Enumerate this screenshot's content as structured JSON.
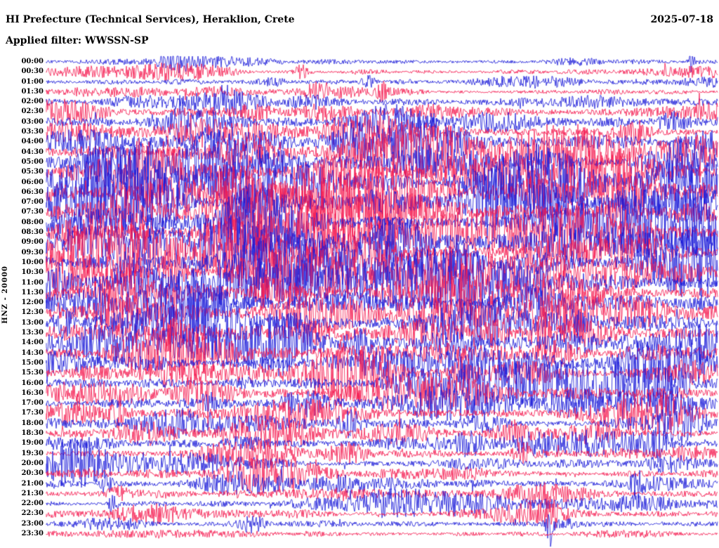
{
  "header": {
    "station_title": "HI Prefecture (Technical Services), Heraklion, Crete",
    "date": "2025-07-18",
    "filter_label": "Applied filter: WWSSN-SP"
  },
  "axis": {
    "channel_label": "HNZ - 20000"
  },
  "colors": {
    "trace_blue": "#1515d8",
    "trace_red": "#f5144b",
    "background": "#ffffff",
    "text": "#000000"
  },
  "chart_data": {
    "type": "line",
    "subtype": "helicorder-seismogram",
    "title": "HI Prefecture (Technical Services), Heraklion, Crete",
    "date": "2025-07-18",
    "filter": "WWSSN-SP",
    "ylabel": "HNZ - 20000",
    "row_interval_minutes": 30,
    "rows": [
      {
        "time": "00:00",
        "color": "blue",
        "activity": 0.1
      },
      {
        "time": "00:30",
        "color": "red",
        "activity": 0.12
      },
      {
        "time": "01:00",
        "color": "blue",
        "activity": 0.12
      },
      {
        "time": "01:30",
        "color": "red",
        "activity": 0.14
      },
      {
        "time": "02:00",
        "color": "blue",
        "activity": 0.22
      },
      {
        "time": "02:30",
        "color": "red",
        "activity": 0.3
      },
      {
        "time": "03:00",
        "color": "blue",
        "activity": 0.34
      },
      {
        "time": "03:30",
        "color": "red",
        "activity": 0.4
      },
      {
        "time": "04:00",
        "color": "blue",
        "activity": 0.5
      },
      {
        "time": "04:30",
        "color": "red",
        "activity": 0.55
      },
      {
        "time": "05:00",
        "color": "blue",
        "activity": 0.62
      },
      {
        "time": "05:30",
        "color": "red",
        "activity": 0.65
      },
      {
        "time": "06:00",
        "color": "blue",
        "activity": 0.72
      },
      {
        "time": "06:30",
        "color": "red",
        "activity": 0.72
      },
      {
        "time": "07:00",
        "color": "blue",
        "activity": 0.68
      },
      {
        "time": "07:30",
        "color": "red",
        "activity": 0.7
      },
      {
        "time": "08:00",
        "color": "blue",
        "activity": 0.62
      },
      {
        "time": "08:30",
        "color": "red",
        "activity": 0.6
      },
      {
        "time": "09:00",
        "color": "blue",
        "activity": 0.62
      },
      {
        "time": "09:30",
        "color": "red",
        "activity": 0.58
      },
      {
        "time": "10:00",
        "color": "blue",
        "activity": 0.62
      },
      {
        "time": "10:30",
        "color": "red",
        "activity": 0.66
      },
      {
        "time": "11:00",
        "color": "blue",
        "activity": 0.62
      },
      {
        "time": "11:30",
        "color": "red",
        "activity": 0.58
      },
      {
        "time": "12:00",
        "color": "blue",
        "activity": 0.6
      },
      {
        "time": "12:30",
        "color": "red",
        "activity": 0.56
      },
      {
        "time": "13:00",
        "color": "blue",
        "activity": 0.55
      },
      {
        "time": "13:30",
        "color": "red",
        "activity": 0.52
      },
      {
        "time": "14:00",
        "color": "blue",
        "activity": 0.52
      },
      {
        "time": "14:30",
        "color": "red",
        "activity": 0.5
      },
      {
        "time": "15:00",
        "color": "blue",
        "activity": 0.5
      },
      {
        "time": "15:30",
        "color": "red",
        "activity": 0.46
      },
      {
        "time": "16:00",
        "color": "blue",
        "activity": 0.45
      },
      {
        "time": "16:30",
        "color": "red",
        "activity": 0.42
      },
      {
        "time": "17:00",
        "color": "blue",
        "activity": 0.4
      },
      {
        "time": "17:30",
        "color": "red",
        "activity": 0.36
      },
      {
        "time": "18:00",
        "color": "blue",
        "activity": 0.4
      },
      {
        "time": "18:30",
        "color": "red",
        "activity": 0.36
      },
      {
        "time": "19:00",
        "color": "blue",
        "activity": 0.35
      },
      {
        "time": "19:30",
        "color": "red",
        "activity": 0.3
      },
      {
        "time": "20:00",
        "color": "blue",
        "activity": 0.3
      },
      {
        "time": "20:30",
        "color": "red",
        "activity": 0.26
      },
      {
        "time": "21:00",
        "color": "blue",
        "activity": 0.26
      },
      {
        "time": "21:30",
        "color": "red",
        "activity": 0.22
      },
      {
        "time": "22:00",
        "color": "blue",
        "activity": 0.2
      },
      {
        "time": "22:30",
        "color": "red",
        "activity": 0.18
      },
      {
        "time": "23:00",
        "color": "blue",
        "activity": 0.15
      },
      {
        "time": "23:30",
        "color": "red",
        "activity": 0.14
      }
    ],
    "spikes": [
      {
        "row": 0,
        "x": 0.961,
        "gain": 5.0,
        "width": 3
      },
      {
        "row": 1,
        "x": 0.38,
        "gain": 2.5,
        "width": 6
      },
      {
        "row": 2,
        "x": 0.48,
        "gain": 2.5,
        "width": 6
      },
      {
        "row": 3,
        "x": 0.5,
        "gain": 2.5,
        "width": 5
      },
      {
        "row": 4,
        "x": 0.27,
        "gain": 3.5,
        "width": 6
      },
      {
        "row": 6,
        "x": 0.2,
        "gain": 2.5,
        "width": 6
      },
      {
        "row": 11,
        "x": 0.18,
        "gain": 2.0,
        "width": 8
      },
      {
        "row": 21,
        "x": 0.13,
        "gain": 2.0,
        "width": 8
      },
      {
        "row": 27,
        "x": 0.74,
        "gain": 2.0,
        "width": 8
      },
      {
        "row": 34,
        "x": 0.86,
        "gain": 3.5,
        "width": 5
      },
      {
        "row": 35,
        "x": 0.11,
        "gain": 2.5,
        "width": 6
      },
      {
        "row": 38,
        "x": 0.915,
        "gain": 4.0,
        "width": 5
      },
      {
        "row": 42,
        "x": 0.09,
        "gain": 3.0,
        "width": 5
      },
      {
        "row": 44,
        "x": 0.1,
        "gain": 2.5,
        "width": 5
      },
      {
        "row": 45,
        "x": 0.755,
        "gain": 3.5,
        "width": 5
      },
      {
        "row": 46,
        "x": 0.75,
        "gain": 7.0,
        "width": 4
      }
    ],
    "legend_position": "none",
    "grid": false
  }
}
